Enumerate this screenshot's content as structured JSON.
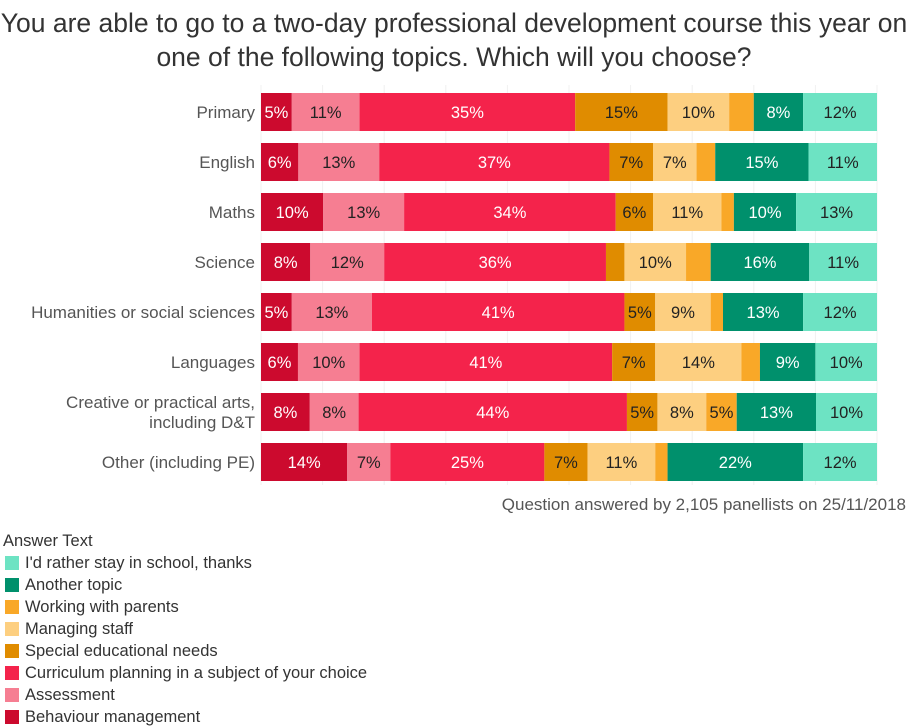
{
  "chart_data": {
    "type": "bar",
    "orientation": "horizontal",
    "stacked": true,
    "title": "You are able to go to a two-day professional development course this year on one of the following topics. Which will you choose?",
    "footnote": "Question answered by 2,105 panellists on 25/11/2018",
    "legend_title": "Answer Text",
    "legend_placement": "bottom-left",
    "categories": [
      "Primary",
      "English",
      "Maths",
      "Science",
      "Humanities or social sciences",
      "Languages",
      "Creative or practical arts,\nincluding D&T",
      "Other (including PE)"
    ],
    "series": [
      {
        "name": "Behaviour management",
        "color": "#cc0a2e",
        "text": "#ffffff",
        "values": [
          5,
          6,
          10,
          8,
          5,
          6,
          8,
          14
        ]
      },
      {
        "name": "Assessment",
        "color": "#f67e92",
        "text": "#222222",
        "values": [
          11,
          13,
          13,
          12,
          13,
          10,
          8,
          7
        ]
      },
      {
        "name": "Curriculum planning in a subject of your choice",
        "color": "#f4234b",
        "text": "#ffffff",
        "values": [
          35,
          37,
          34,
          36,
          41,
          41,
          44,
          25
        ]
      },
      {
        "name": "Special educational needs",
        "color": "#e08c00",
        "text": "#222222",
        "values": [
          15,
          7,
          6,
          3,
          5,
          7,
          5,
          7
        ]
      },
      {
        "name": "Managing staff",
        "color": "#fdcf80",
        "text": "#222222",
        "values": [
          10,
          7,
          11,
          10,
          9,
          14,
          8,
          11
        ]
      },
      {
        "name": "Working with parents",
        "color": "#f9a828",
        "text": "#222222",
        "values": [
          4,
          3,
          2,
          4,
          2,
          3,
          5,
          2
        ]
      },
      {
        "name": "Another topic",
        "color": "#00906c",
        "text": "#ffffff",
        "values": [
          8,
          15,
          10,
          16,
          13,
          9,
          13,
          22
        ]
      },
      {
        "name": "I'd rather stay in school, thanks",
        "color": "#6de3c3",
        "text": "#222222",
        "values": [
          12,
          11,
          13,
          11,
          12,
          10,
          10,
          12
        ]
      }
    ],
    "label_threshold": 5,
    "value_suffix": "%",
    "xlim": [
      0,
      100
    ]
  }
}
